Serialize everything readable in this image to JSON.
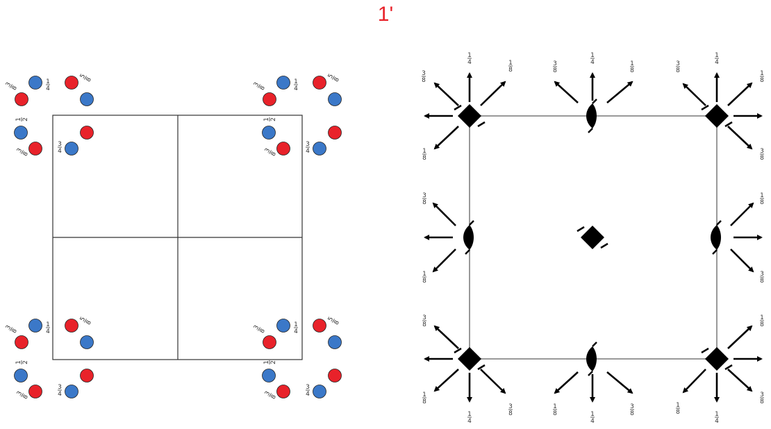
{
  "title": "1'",
  "colors": {
    "title": "#e8222a",
    "atom_red": "#e8222a",
    "atom_blue": "#3b78c8",
    "atom_outline": "#222222",
    "frame_left": "#333333",
    "frame_right": "#999999",
    "symbol": "#000000"
  },
  "heights": {
    "quarter": {
      "num": "1",
      "den": "4"
    },
    "eighth": {
      "num": "1",
      "den": "8"
    },
    "three_eighths": {
      "num": "3",
      "den": "8"
    },
    "three_quarters": {
      "num": "3",
      "den": "4"
    },
    "half": {
      "num": "1",
      "den": "2"
    },
    "five_eighths": {
      "num": "5",
      "den": "8"
    }
  },
  "left_panel": {
    "type": "unit-cell-atom-positions",
    "cell_divisions": "2x2",
    "atom_colors": [
      "red",
      "blue"
    ]
  },
  "right_panel": {
    "type": "symmetry-element-diagram",
    "symbols": [
      "4-bar-inversion-axis-icon",
      "2-fold-screw-axis-icon",
      "glide-arrow-icon"
    ]
  }
}
